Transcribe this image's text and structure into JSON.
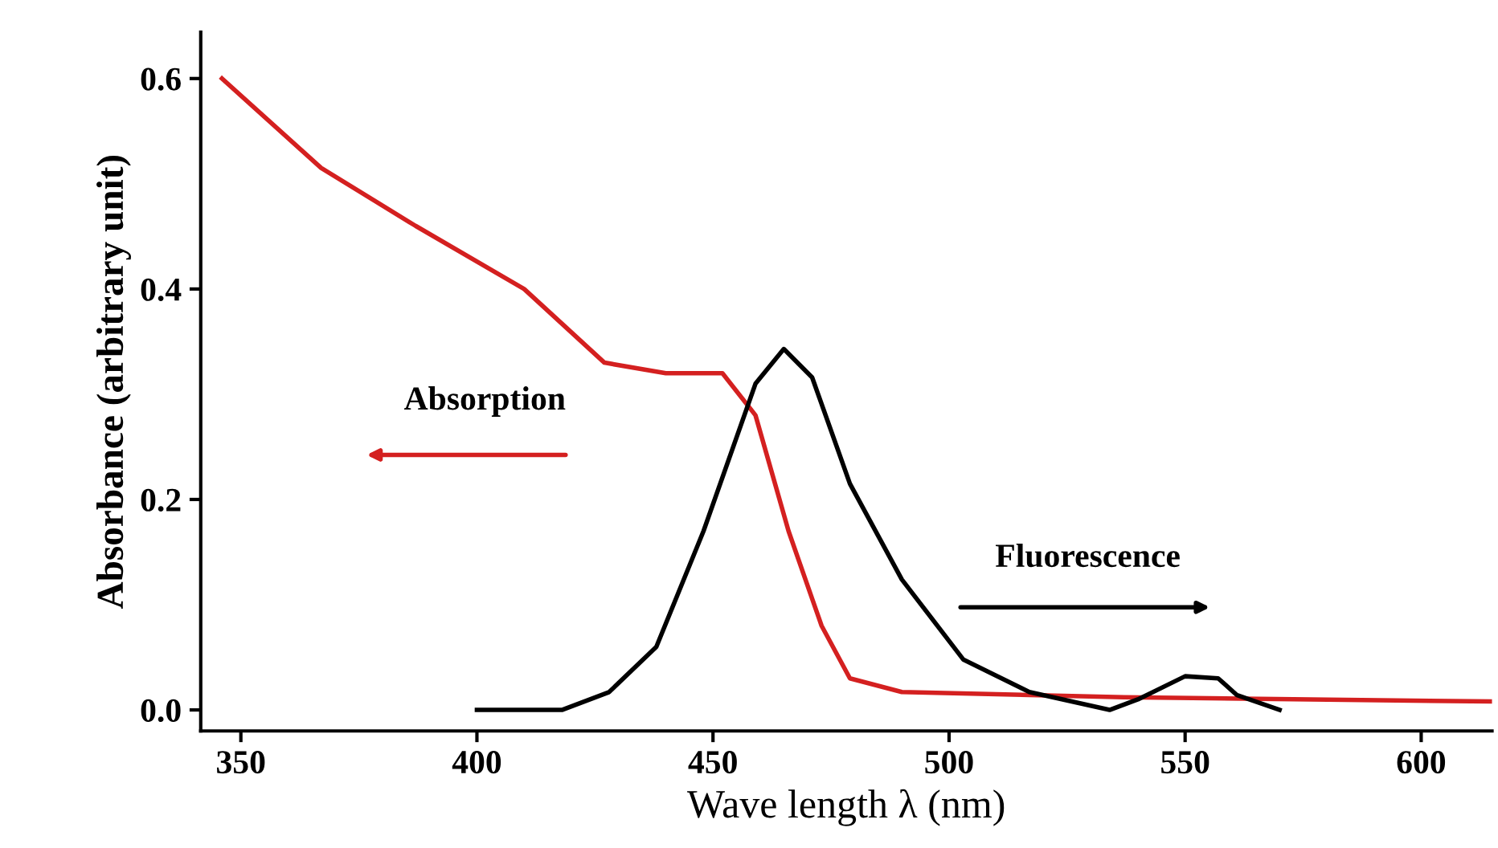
{
  "chart_data": {
    "type": "line",
    "xlabel": "Wave length λ (nm)",
    "ylabel": "Absorbance (arbitrary unit)",
    "series": [
      {
        "color": "#d42020",
        "x": [
          346,
          367,
          387,
          410,
          427,
          440,
          452,
          459,
          466,
          473,
          479,
          490,
          537,
          615
        ],
        "values": [
          0.6,
          0.515,
          0.46,
          0.4,
          0.33,
          0.32,
          0.32,
          0.28,
          0.17,
          0.08,
          0.03,
          0.017,
          0.012,
          0.008
        ]
      },
      {
        "color": "#000000",
        "x": [
          400,
          418,
          428,
          438,
          448,
          459,
          465,
          471,
          479,
          490,
          503,
          517,
          534,
          540,
          550,
          557,
          561,
          570
        ],
        "values": [
          0.0,
          0.0,
          0.017,
          0.06,
          0.17,
          0.31,
          0.343,
          0.316,
          0.215,
          0.124,
          0.048,
          0.017,
          0.0,
          0.01,
          0.032,
          0.03,
          0.014,
          0.0
        ]
      }
    ],
    "annotations": [
      "Absorption",
      "Fluorescence"
    ],
    "xlim": [
      341.5,
      615
    ],
    "ylim": [
      -0.02,
      0.644
    ],
    "xticks": [
      350,
      400,
      450,
      500,
      550,
      600
    ],
    "yticks": [
      {
        "value": 0,
        "label": "0.0"
      },
      {
        "value": 0.2,
        "label": "0.2"
      },
      {
        "value": 0.4,
        "label": "0.4"
      },
      {
        "value": 0.6,
        "label": "0.6"
      }
    ],
    "grid": false,
    "legend": false,
    "marker": "none",
    "line_style": "solid"
  }
}
